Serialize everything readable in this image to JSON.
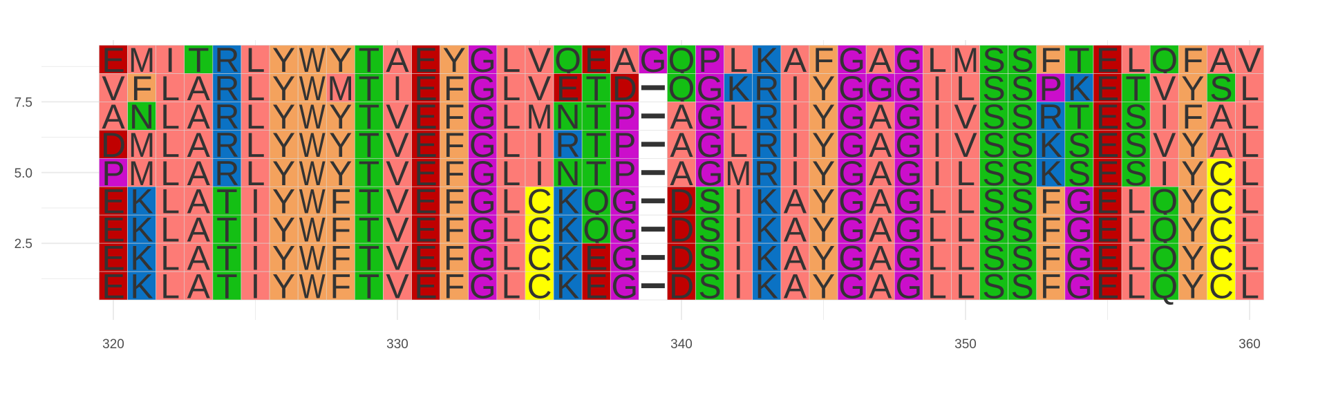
{
  "chart_data": {
    "type": "heatmap",
    "title": "",
    "xlabel": "",
    "ylabel": "",
    "x_start": 320,
    "xlim": [
      319.5,
      360.5
    ],
    "ylim": [
      0.5,
      9.5
    ],
    "x_ticks": [
      320,
      330,
      340,
      350,
      360
    ],
    "y_ticks": [
      2.5,
      5.0,
      7.5
    ],
    "x_tick_labels": [
      "320",
      "330",
      "340",
      "350",
      "360"
    ],
    "y_tick_labels": [
      "2.5",
      "5.0",
      "7.5"
    ],
    "grid": true,
    "legend": "none",
    "rows": [
      {
        "y": 9,
        "sequence": "EMITRLYWYTAEYGLVQEAGQPLKAFGAGLMSSFTELQFAV"
      },
      {
        "y": 8,
        "sequence": "VFLARLYWMTIEFGLVETD-QGKRIYGGGILSSPKETVYSL"
      },
      {
        "y": 7,
        "sequence": "ANLARLYWYTVEFGLMNTP-AGLRIYGAGIVSSRTESIFAL"
      },
      {
        "y": 6,
        "sequence": "DMLARLYWYTVEFGLIRTP-AGLRIYGAGIVSSKSESVYAL"
      },
      {
        "y": 5,
        "sequence": "PMLARLYWYTVEFGLINTP-AGMRIYGAGILSSKSESIYCL"
      },
      {
        "y": 4,
        "sequence": "EKLATIYWFTVEFGLCKQG-DSIKAYGAGLLSSFGELQYCL"
      },
      {
        "y": 3,
        "sequence": "EKLATIYWFTVEFGLCKQG-DSIKAYGAGLLSSFGELQYCL"
      },
      {
        "y": 2,
        "sequence": "EKLATIYWFTVEFGLCKEG-DSIKAYGAGLLSSFGELQYCL"
      },
      {
        "y": 1,
        "sequence": "EKLATIYWFTVEFGLCKEG-DSIKAYGAGLLSSFGELQYCL"
      }
    ],
    "residue_colors": {
      "A": "#fd7b76",
      "I": "#fd7b76",
      "L": "#fd7b76",
      "M": "#fd7b76",
      "V": "#fd7b76",
      "F": "#f4a25d",
      "W": "#f4a25d",
      "Y": "#f4a25d",
      "N": "#14bf14",
      "Q": "#14bf14",
      "S": "#14bf14",
      "T": "#14bf14",
      "K": "#0b72c4",
      "R": "#0b72c4",
      "D": "#c00000",
      "E": "#c00000",
      "G": "#cb0ecb",
      "P": "#cb0ecb",
      "C": "#ffff00",
      "-": "#ffffff"
    },
    "grid_color": "#ebebeb",
    "text_color": "#333333"
  }
}
